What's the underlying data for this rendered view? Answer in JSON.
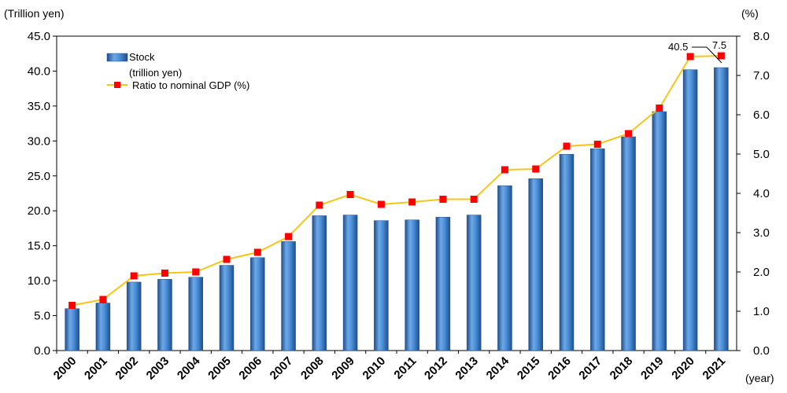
{
  "chart_data": {
    "type": "bar",
    "categories": [
      "2000",
      "2001",
      "2002",
      "2003",
      "2004",
      "2005",
      "2006",
      "2007",
      "2008",
      "2009",
      "2010",
      "2011",
      "2012",
      "2013",
      "2014",
      "2015",
      "2016",
      "2017",
      "2018",
      "2019",
      "2020",
      "2021"
    ],
    "series": [
      {
        "name": "Stock",
        "name_sub": "(trillion yen)",
        "type": "bar",
        "axis": "left",
        "color": "#4a90d9",
        "values": [
          6.0,
          6.8,
          9.8,
          10.2,
          10.5,
          12.2,
          13.3,
          15.6,
          19.3,
          19.4,
          18.6,
          18.7,
          19.1,
          19.4,
          23.6,
          24.6,
          28.1,
          28.9,
          30.6,
          34.2,
          40.2,
          40.5
        ]
      },
      {
        "name": "Ratio to nominal GDP (%)",
        "type": "line",
        "axis": "right",
        "color": "#f5c518",
        "marker_color": "#ff0000",
        "values": [
          1.15,
          1.3,
          1.9,
          1.97,
          2.0,
          2.32,
          2.5,
          2.9,
          3.7,
          3.97,
          3.72,
          3.78,
          3.85,
          3.85,
          4.6,
          4.62,
          5.2,
          5.25,
          5.52,
          6.17,
          7.48,
          7.5
        ]
      }
    ],
    "y_left": {
      "label": "(Trillion yen)",
      "ylim": [
        0,
        45
      ],
      "ticks": [
        "0.0",
        "5.0",
        "10.0",
        "15.0",
        "20.0",
        "25.0",
        "30.0",
        "35.0",
        "40.0",
        "45.0"
      ]
    },
    "y_right": {
      "label": "(%)",
      "ylim": [
        0,
        8
      ],
      "ticks": [
        "0.0",
        "1.0",
        "2.0",
        "3.0",
        "4.0",
        "5.0",
        "6.0",
        "7.0",
        "8.0"
      ]
    },
    "xlabel": "(year)",
    "annotations": [
      {
        "text": "40.5",
        "target": "Stock 2021"
      },
      {
        "text": "7.5",
        "target": "Ratio to nominal GDP (%) 2021"
      }
    ],
    "legend_position": "top-left",
    "grid": false
  }
}
